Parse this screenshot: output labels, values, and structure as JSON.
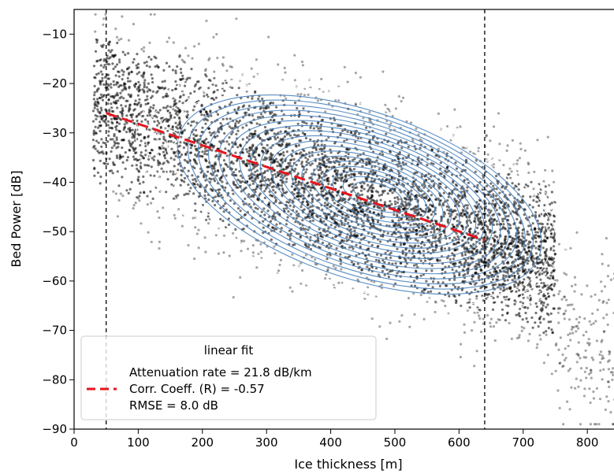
{
  "chart_data": {
    "type": "scatter",
    "xlabel": "Ice thickness [m]",
    "ylabel": "Bed Power [dB]",
    "xlim": [
      0,
      860
    ],
    "ylim": [
      -90,
      -5
    ],
    "xticks": [
      0,
      100,
      200,
      300,
      400,
      500,
      600,
      700,
      800
    ],
    "yticks": [
      -10,
      -20,
      -30,
      -40,
      -50,
      -60,
      -70,
      -80,
      -90
    ],
    "grid": false,
    "vertical_lines": [
      50,
      640
    ],
    "fit_line": {
      "x": [
        50,
        640
      ],
      "y": [
        -26,
        -51.7
      ],
      "color": "#e8141b"
    },
    "density_center": {
      "x": 475,
      "y": -42.5
    },
    "contour_color_outer": "#ffffff",
    "contour_color_inner": "#4f86c0",
    "point_color": "#000000",
    "legend": {
      "title": "linear fit",
      "lines": [
        "Attenuation rate =  21.8 dB/km",
        "Corr. Coeff. (R) = -0.57",
        "RMSE = 8.0 dB"
      ],
      "placement": "lower-left"
    }
  }
}
